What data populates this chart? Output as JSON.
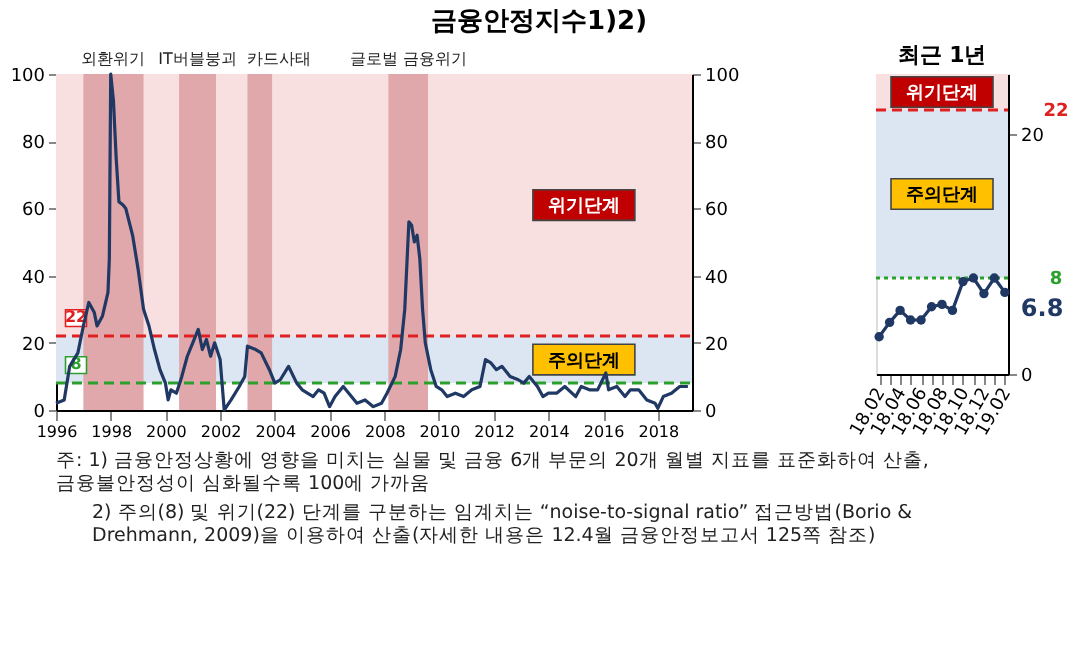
{
  "chart_data": [
    {
      "type": "line",
      "title": "금융안정지수1)2)",
      "x": [
        1996.0,
        1996.3,
        1996.5,
        1996.8,
        1997.0,
        1997.2,
        1997.4,
        1997.5,
        1997.7,
        1997.9,
        1997.95,
        1998.0,
        1998.1,
        1998.2,
        1998.3,
        1998.45,
        1998.55,
        1998.8,
        1999.0,
        1999.2,
        1999.4,
        1999.6,
        1999.8,
        2000.0,
        2000.1,
        2000.2,
        2000.4,
        2000.6,
        2000.8,
        2001.0,
        2001.2,
        2001.35,
        2001.5,
        2001.65,
        2001.8,
        2002.0,
        2002.1,
        2002.15,
        2002.4,
        2002.7,
        2002.9,
        2003.0,
        2003.3,
        2003.5,
        2003.8,
        2004.0,
        2004.2,
        2004.5,
        2004.8,
        2005.0,
        2005.4,
        2005.6,
        2005.8,
        2006.0,
        2006.2,
        2006.5,
        2006.8,
        2007.0,
        2007.3,
        2007.6,
        2007.9,
        2008.1,
        2008.4,
        2008.6,
        2008.75,
        2008.9,
        2009.0,
        2009.1,
        2009.2,
        2009.3,
        2009.4,
        2009.5,
        2009.7,
        2009.9,
        2010.1,
        2010.3,
        2010.6,
        2010.9,
        2011.2,
        2011.5,
        2011.7,
        2011.9,
        2012.1,
        2012.3,
        2012.6,
        2012.9,
        2013.1,
        2013.3,
        2013.6,
        2013.8,
        2014.0,
        2014.3,
        2014.6,
        2015.0,
        2015.2,
        2015.5,
        2015.8,
        2016.1,
        2016.2,
        2016.5,
        2016.8,
        2017.0,
        2017.3,
        2017.6,
        2017.9,
        2018.0,
        2018.2,
        2018.5,
        2018.8,
        2019.0,
        2019.1
      ],
      "series": [
        {
          "color": "#203864",
          "values": [
            2,
            3,
            13,
            17,
            25,
            32,
            29,
            25,
            28,
            35,
            45,
            100,
            92,
            75,
            62,
            61,
            60,
            52,
            42,
            30,
            25,
            18,
            12,
            8,
            3,
            6,
            5,
            10,
            16,
            20,
            24,
            18,
            21,
            16,
            20,
            15,
            5,
            0,
            3,
            7,
            10,
            19,
            18,
            17,
            12,
            8,
            9,
            13,
            8,
            6,
            4,
            6,
            5,
            1,
            4,
            7,
            4,
            2,
            3,
            1,
            2,
            5,
            10,
            18,
            30,
            56,
            55,
            50,
            52,
            45,
            30,
            20,
            12,
            7,
            6,
            4,
            5,
            4,
            6,
            7,
            15,
            14,
            12,
            13,
            10,
            9,
            8,
            10,
            7,
            4,
            5,
            5,
            7,
            4,
            7,
            6,
            6,
            11,
            6,
            7,
            4,
            6,
            6,
            3,
            2,
            0.5,
            4,
            5,
            7,
            7,
            7
          ]
        }
      ],
      "xlim": [
        1996,
        2019.25
      ],
      "xticks": [
        1996,
        1998,
        2000,
        2002,
        2004,
        2006,
        2008,
        2010,
        2012,
        2014,
        2016,
        2018
      ],
      "ylim": [
        0,
        100
      ],
      "yticks": [
        0,
        20,
        40,
        60,
        80,
        100
      ],
      "y2lim": [
        0,
        100
      ],
      "y2ticks": [
        0,
        20,
        40,
        60,
        80,
        100
      ],
      "bands": [
        {
          "axis": "y",
          "from": 22,
          "to": 100,
          "label": "위기단계",
          "color": "#f9e0e0"
        },
        {
          "axis": "y",
          "from": 8,
          "to": 22,
          "label": "주의단계",
          "color": "#dce6f2"
        },
        {
          "axis": "x",
          "from": 1997.0,
          "to": 1999.2,
          "label": "외환위기",
          "color": "#e0a8aa"
        },
        {
          "axis": "x",
          "from": 2000.5,
          "to": 2001.85,
          "label": "IT버블붕괴",
          "color": "#e0a8aa"
        },
        {
          "axis": "x",
          "from": 2003.0,
          "to": 2003.9,
          "label": "카드사태",
          "color": "#e0a8aa"
        },
        {
          "axis": "x",
          "from": 2008.15,
          "to": 2009.6,
          "label": "글로벌 금융위기",
          "color": "#e0a8aa"
        }
      ],
      "ref_lines": [
        {
          "axis": "y",
          "value": 22,
          "label": "22",
          "color": "#e02020",
          "line_style": "dashed"
        },
        {
          "axis": "y",
          "value": 8,
          "label": "8",
          "color": "#2ca02c",
          "line_style": "dashed"
        }
      ],
      "annotations": [
        "주: 1) 금융안정상황에 영향을 미치는 실물 및 금융 6개 부문의 20개 월별 지표를 표준화하여 산출, 금융불안정성이 심화될수록 100에 가까움",
        "2) 주의(8) 및 위기(22) 단계를 구분하는 임계치는 “noise-to-signal ratio” 접근방법(Borio & Drehmann, 2009)을 이용하여 산출(자세한 내용은 12.4월 금융안정보고서 125쪽 참조)"
      ]
    },
    {
      "type": "line",
      "title": "최근 1년",
      "categories": [
        "18.02",
        null,
        "18.04",
        null,
        "18.06",
        null,
        "18.08",
        null,
        "18.10",
        null,
        "18.12",
        null,
        "19.02"
      ],
      "series": [
        {
          "color": "#203864",
          "axis": "y2",
          "values": [
            3.1,
            4.3,
            5.3,
            4.5,
            4.5,
            5.6,
            5.8,
            5.3,
            7.7,
            8.0,
            6.7,
            8.0,
            6.8
          ],
          "value_labels": [
            null,
            null,
            null,
            null,
            null,
            null,
            null,
            null,
            null,
            null,
            null,
            null,
            "6.8"
          ]
        }
      ],
      "marker": "circle",
      "y2lim": [
        0,
        25
      ],
      "y2ticks": [
        0,
        20
      ],
      "bands": [
        {
          "axis": "y2",
          "from": 22,
          "to": 25,
          "label": "위기단계",
          "color": "#f9e0e0"
        },
        {
          "axis": "y2",
          "from": 8,
          "to": 22,
          "label": "주의단계",
          "color": "#dce6f2"
        }
      ],
      "ref_lines": [
        {
          "axis": "y2",
          "value": 22,
          "label": "22",
          "color": "#e02020",
          "line_style": "dashed"
        },
        {
          "axis": "y2",
          "value": 8,
          "label": "8",
          "color": "#2ca02c",
          "line_style": "dotted"
        }
      ]
    }
  ]
}
